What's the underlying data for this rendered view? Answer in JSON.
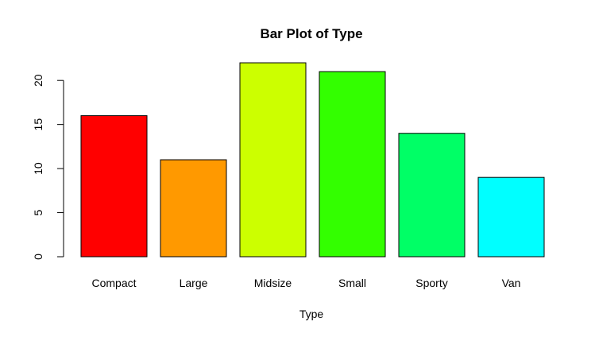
{
  "chart_data": {
    "type": "bar",
    "title": "Bar Plot of Type",
    "xlabel": "Type",
    "ylabel": "",
    "categories": [
      "Compact",
      "Large",
      "Midsize",
      "Small",
      "Sporty",
      "Van"
    ],
    "values": [
      16,
      11,
      22,
      21,
      14,
      9
    ],
    "colors": [
      "#FF0000",
      "#FF9900",
      "#CCFF00",
      "#33FF00",
      "#00FF66",
      "#00FFFF"
    ],
    "ylim": [
      0,
      22
    ],
    "yticks": [
      "0",
      "5",
      "10",
      "15",
      "20"
    ],
    "bar_border_color": "#000000",
    "grid": false,
    "legend": "none"
  }
}
